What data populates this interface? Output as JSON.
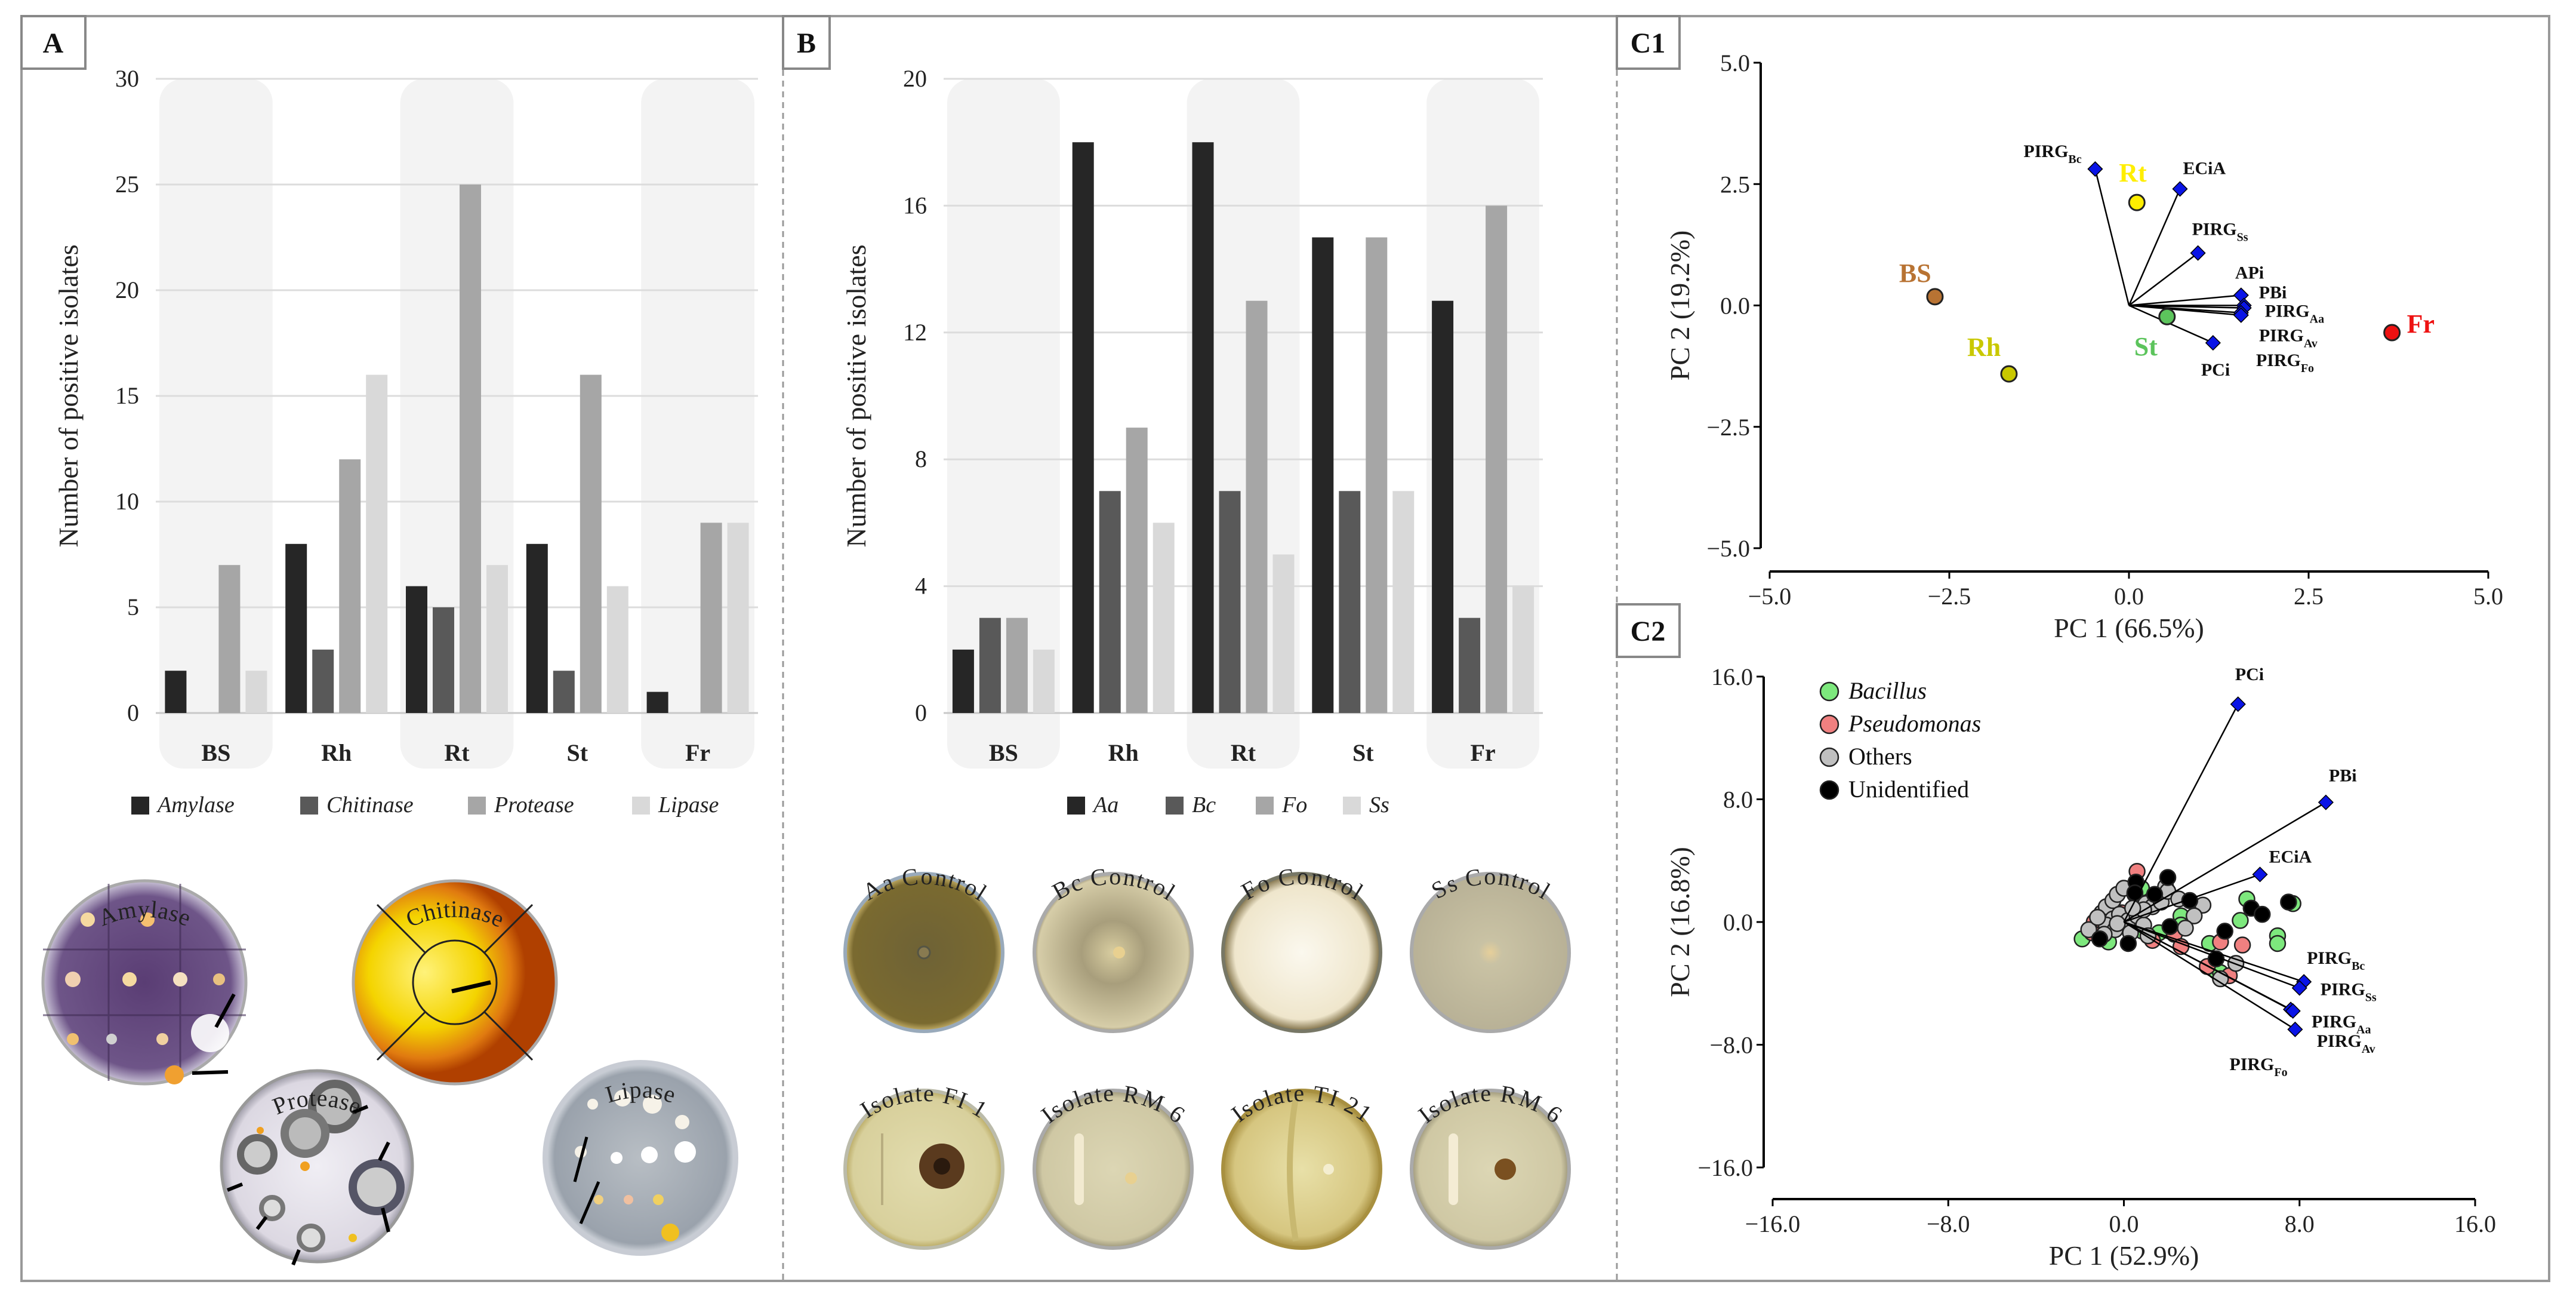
{
  "panels": {
    "a": "A",
    "b": "B",
    "c1": "C1",
    "c2": "C2"
  },
  "chart_data": [
    {
      "id": "A",
      "type": "bar",
      "title": "",
      "xlabel": "",
      "ylabel": "Number of positive isolates",
      "ylim": [
        0,
        30
      ],
      "yticks": [
        0,
        5,
        10,
        15,
        20,
        25,
        30
      ],
      "grid": true,
      "legend": "bottom",
      "categories": [
        "BS",
        "Rh",
        "Rt",
        "St",
        "Fr"
      ],
      "series": [
        {
          "name": "Amylase",
          "color": "#262626",
          "values": [
            2,
            8,
            6,
            8,
            1
          ]
        },
        {
          "name": "Chitinase",
          "color": "#595959",
          "values": [
            0,
            3,
            5,
            2,
            0
          ]
        },
        {
          "name": "Protease",
          "color": "#a6a6a6",
          "values": [
            7,
            12,
            25,
            16,
            9
          ]
        },
        {
          "name": "Lipase",
          "color": "#d9d9d9",
          "values": [
            2,
            16,
            7,
            6,
            9
          ]
        }
      ]
    },
    {
      "id": "B",
      "type": "bar",
      "title": "",
      "xlabel": "",
      "ylabel": "Number of positive isolates",
      "ylim": [
        0,
        20
      ],
      "yticks": [
        0,
        4,
        8,
        12,
        16,
        20
      ],
      "grid": true,
      "legend": "bottom",
      "categories": [
        "BS",
        "Rh",
        "Rt",
        "St",
        "Fr"
      ],
      "series": [
        {
          "name": "Aa",
          "color": "#262626",
          "values": [
            2,
            18,
            18,
            15,
            13
          ]
        },
        {
          "name": "Bc",
          "color": "#595959",
          "values": [
            3,
            7,
            7,
            7,
            3
          ]
        },
        {
          "name": "Fo",
          "color": "#a6a6a6",
          "values": [
            3,
            9,
            13,
            15,
            16
          ]
        },
        {
          "name": "Ss",
          "color": "#d9d9d9",
          "values": [
            2,
            6,
            5,
            7,
            4
          ]
        }
      ]
    },
    {
      "id": "C1",
      "type": "scatter",
      "xlabel": "PC 1 (66.5%)",
      "ylabel": "PC 2 (19.2%)",
      "xlim": [
        -5,
        5
      ],
      "ylim": [
        -5,
        5
      ],
      "xticks": [
        -5,
        -2.5,
        0,
        2.5,
        5
      ],
      "yticks": [
        -5,
        -2.5,
        0,
        2.5,
        5
      ],
      "xtick_labels": [
        "−5.0",
        "−2.5",
        "0.0",
        "2.5",
        "5.0"
      ],
      "ytick_labels": [
        "−5.0",
        "−2.5",
        "0.0",
        "2.5",
        "5.0"
      ],
      "points": [
        {
          "label": "BS",
          "x": -2.7,
          "y": 0.18,
          "color": "#b87333"
        },
        {
          "label": "Rh",
          "x": -1.67,
          "y": -1.41,
          "color": "#c9c800"
        },
        {
          "label": "Rt",
          "x": 0.11,
          "y": 2.12,
          "color": "#ffee00"
        },
        {
          "label": "St",
          "x": 0.53,
          "y": -0.23,
          "color": "#5cc45c"
        },
        {
          "label": "Fr",
          "x": 3.66,
          "y": -0.56,
          "color": "#ee1111"
        }
      ],
      "loadings": [
        {
          "base": "PIRG",
          "sub": "Bc",
          "x": -0.47,
          "y": 2.81
        },
        {
          "base": "ECiA",
          "sub": "",
          "x": 0.71,
          "y": 2.4
        },
        {
          "base": "PIRG",
          "sub": "Ss",
          "x": 0.96,
          "y": 1.08
        },
        {
          "base": "APi",
          "sub": "",
          "x": 1.56,
          "y": 0.21
        },
        {
          "base": "PBi",
          "sub": "",
          "x": 1.6,
          "y": 0.0
        },
        {
          "base": "PIRG",
          "sub": "Aa",
          "x": 1.6,
          "y": -0.05
        },
        {
          "base": "PIRG",
          "sub": "Av",
          "x": 1.56,
          "y": -0.15
        },
        {
          "base": "PIRG",
          "sub": "Fo",
          "x": 1.56,
          "y": -0.2
        },
        {
          "base": "PCi",
          "sub": "",
          "x": 1.17,
          "y": -0.77
        }
      ],
      "loading_color": "#0a14e6"
    },
    {
      "id": "C2",
      "type": "scatter",
      "xlabel": "PC 1 (52.9%)",
      "ylabel": "PC 2 (16.8%)",
      "xlim": [
        -16,
        16
      ],
      "ylim": [
        -16,
        16
      ],
      "xticks": [
        -16,
        -8,
        0,
        8,
        16
      ],
      "yticks": [
        -16,
        -8,
        0,
        8,
        16
      ],
      "xtick_labels": [
        "−16.0",
        "−8.0",
        "0.0",
        "8.0",
        "16.0"
      ],
      "ytick_labels": [
        "−16.0",
        "−8.0",
        "0.0",
        "8.0",
        "16.0"
      ],
      "legend": "top-left",
      "groups": [
        {
          "name": "Bacillus",
          "italic": true,
          "color": "#7de87d",
          "points": [
            [
              -1.9,
              -1.1
            ],
            [
              -0.7,
              -1.3
            ],
            [
              0.8,
              2.2
            ],
            [
              2.6,
              0.4
            ],
            [
              2.6,
              -0.2
            ],
            [
              1.6,
              -0.7
            ],
            [
              3.9,
              -1.4
            ],
            [
              5.3,
              0.1
            ],
            [
              5.6,
              1.5
            ],
            [
              7.0,
              -0.9
            ],
            [
              7.0,
              -1.4
            ],
            [
              7.7,
              1.2
            ],
            [
              4.2,
              -3.2
            ],
            [
              4.4,
              -3.3
            ],
            [
              0.85,
              -0.6
            ]
          ]
        },
        {
          "name": "Pseudomonas",
          "italic": true,
          "color": "#f08080",
          "points": [
            [
              0.6,
              3.3
            ],
            [
              -1.35,
              0
            ],
            [
              -0.1,
              0.6
            ],
            [
              1.3,
              -1.2
            ],
            [
              2.3,
              -0.8
            ],
            [
              2.6,
              -1.6
            ],
            [
              4.4,
              -1.3
            ],
            [
              5.4,
              -1.5
            ],
            [
              3.8,
              -2.9
            ],
            [
              4.8,
              -3.5
            ],
            [
              -1.45,
              -0.7
            ]
          ]
        },
        {
          "name": "Others",
          "italic": false,
          "color": "#c0c0c0",
          "points": [
            [
              -1.6,
              -0.5
            ],
            [
              -1.0,
              0.6
            ],
            [
              -0.8,
              1.0
            ],
            [
              -0.5,
              1.4
            ],
            [
              -0.3,
              1.8
            ],
            [
              0,
              2.2
            ],
            [
              0.5,
              1.8
            ],
            [
              1.0,
              1.2
            ],
            [
              1.3,
              1.0
            ],
            [
              1.7,
              1.3
            ],
            [
              1.9,
              2.3
            ],
            [
              2.0,
              2.0
            ],
            [
              2.5,
              1.5
            ],
            [
              3.6,
              1.1
            ],
            [
              3.2,
              0.4
            ],
            [
              2.8,
              -0.4
            ],
            [
              -0.5,
              0.2
            ],
            [
              -0.2,
              0.5
            ],
            [
              0.2,
              0.1
            ],
            [
              0.6,
              0.4
            ],
            [
              0.9,
              -0.2
            ],
            [
              -0.8,
              -0.2
            ],
            [
              -1.2,
              0.3
            ],
            [
              -0.4,
              -0.5
            ],
            [
              0.3,
              -0.7
            ],
            [
              1.1,
              -0.9
            ],
            [
              4.4,
              -3.7
            ],
            [
              5.1,
              -2.7
            ],
            [
              0.9,
              0.8
            ],
            [
              -0.3,
              -0.1
            ],
            [
              0.4,
              0.9
            ],
            [
              -0.9,
              -0.8
            ]
          ]
        },
        {
          "name": "Unidentified",
          "italic": false,
          "color": "#000000",
          "points": [
            [
              0.55,
              2.6
            ],
            [
              2.0,
              2.9
            ],
            [
              1.4,
              1.8
            ],
            [
              3.0,
              1.4
            ],
            [
              2.1,
              -0.3
            ],
            [
              4.6,
              -0.6
            ],
            [
              5.8,
              0.9
            ],
            [
              6.3,
              0.5
            ],
            [
              7.5,
              1.3
            ],
            [
              4.2,
              -2.4
            ],
            [
              0.2,
              -1.4
            ],
            [
              -1.1,
              -1.1
            ],
            [
              0.5,
              1.9
            ]
          ]
        }
      ],
      "loadings": [
        {
          "base": "PCi",
          "sub": "",
          "x": 5.2,
          "y": 14.2
        },
        {
          "base": "PBi",
          "sub": "",
          "x": 9.2,
          "y": 7.8
        },
        {
          "base": "ECiA",
          "sub": "",
          "x": 6.2,
          "y": 3.1
        },
        {
          "base": "PIRG",
          "sub": "Bc",
          "x": 8.2,
          "y": -3.9
        },
        {
          "base": "PIRG",
          "sub": "Ss",
          "x": 8.0,
          "y": -4.3
        },
        {
          "base": "PIRG",
          "sub": "Aa",
          "x": 7.6,
          "y": -5.7
        },
        {
          "base": "PIRG",
          "sub": "Av",
          "x": 7.7,
          "y": -5.8
        },
        {
          "base": "PIRG",
          "sub": "Fo",
          "x": 7.8,
          "y": -7.0
        }
      ],
      "loading_color": "#0a14e6"
    }
  ],
  "photos": {
    "enzymes": [
      "Amylase",
      "Chitinase",
      "Protease",
      "Lipase"
    ],
    "antagonism": [
      "Aa Control",
      "Bc Control",
      "Fo Control",
      "Ss Control",
      "Isolate FI 1",
      "Isolate RM 6",
      "Isolate TI 21",
      "Isolate RM 6"
    ]
  }
}
